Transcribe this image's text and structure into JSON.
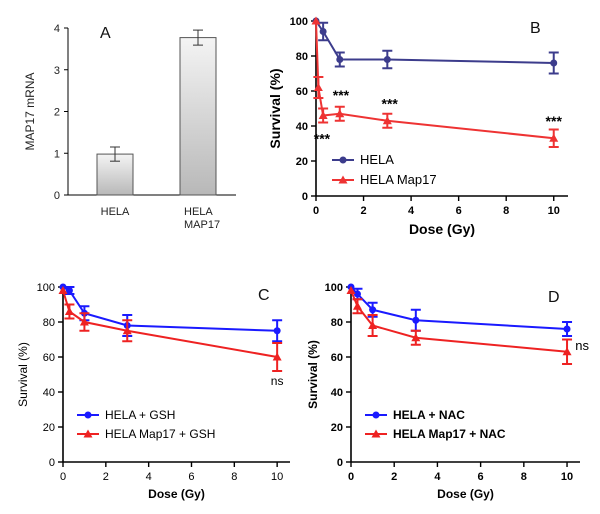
{
  "figure": {
    "description_visible": false
  },
  "chart_data": [
    {
      "panel": "A",
      "type": "bar",
      "panel_label": "A",
      "title": "",
      "xlabel": "",
      "ylabel": "MAP17 mRNA",
      "ylim": [
        0,
        4
      ],
      "yticks": [
        "0",
        "1",
        "2",
        "3",
        "4"
      ],
      "categories": [
        "HELA",
        "HELA\nMAP17"
      ],
      "category_lines": [
        [
          "HELA"
        ],
        [
          "HELA",
          "MAP17"
        ]
      ],
      "values": [
        0.98,
        3.77
      ],
      "errors": [
        0.17,
        0.18
      ],
      "bar_color_top": "#f4f4f4",
      "bar_color_bottom": "#b8b8b8"
    },
    {
      "panel": "B",
      "type": "line",
      "panel_label": "B",
      "xlabel": "Dose (Gy)",
      "ylabel": "Survival (%)",
      "xlim": [
        0,
        10.6
      ],
      "ylim": [
        0,
        100
      ],
      "xticks": [
        "0",
        "2",
        "4",
        "6",
        "8",
        "10"
      ],
      "yticks": [
        "0",
        "20",
        "40",
        "60",
        "80",
        "100"
      ],
      "legend_position": "bottom-left",
      "series": [
        {
          "name": "HELA",
          "color": "#3c3c8c",
          "marker": "circle",
          "x": [
            0,
            0.3,
            1,
            3,
            10
          ],
          "y": [
            100,
            94,
            78,
            78,
            76
          ],
          "err": [
            0,
            5,
            4,
            5,
            6
          ]
        },
        {
          "name": "HELA Map17",
          "color": "#ee3333",
          "marker": "triangle",
          "x": [
            0,
            0.1,
            0.3,
            1,
            3,
            10
          ],
          "y": [
            100,
            62,
            46,
            47,
            43,
            33
          ],
          "err": [
            0,
            6,
            4,
            4,
            4,
            5
          ]
        }
      ],
      "annotations": [
        {
          "text": "***",
          "x": 0.25,
          "y": 30
        },
        {
          "text": "***",
          "x": 1.05,
          "y": 55
        },
        {
          "text": "***",
          "x": 3.1,
          "y": 50
        },
        {
          "text": "***",
          "x": 10,
          "y": 40
        }
      ]
    },
    {
      "panel": "C",
      "type": "line",
      "panel_label": "C",
      "xlabel": "Dose (Gy)",
      "ylabel": "Survival (%)",
      "xlim": [
        0,
        10.6
      ],
      "ylim": [
        0,
        100
      ],
      "xticks": [
        "0",
        "2",
        "4",
        "6",
        "8",
        "10"
      ],
      "yticks": [
        "0",
        "20",
        "40",
        "60",
        "80",
        "100"
      ],
      "legend_position": "bottom-left",
      "series": [
        {
          "name": "HELA + GSH",
          "color": "#1a1aff",
          "marker": "circle",
          "x": [
            0,
            0.3,
            1,
            3,
            10
          ],
          "y": [
            100,
            98,
            85,
            78,
            75
          ],
          "err": [
            0,
            2,
            4,
            6,
            6
          ]
        },
        {
          "name": "HELA Map17 + GSH",
          "color": "#ee2222",
          "marker": "triangle",
          "x": [
            0,
            0.3,
            1,
            3,
            10
          ],
          "y": [
            98,
            86,
            80,
            75,
            60
          ],
          "err": [
            0,
            4,
            5,
            6,
            8
          ]
        }
      ],
      "annotations": [
        {
          "text": "ns",
          "x": 10,
          "y": 44
        }
      ]
    },
    {
      "panel": "D",
      "type": "line",
      "panel_label": "D",
      "xlabel": "Dose (Gy)",
      "ylabel": "Survival (%)",
      "xlim": [
        0,
        10.6
      ],
      "ylim": [
        0,
        100
      ],
      "xticks": [
        "0",
        "2",
        "4",
        "6",
        "8",
        "10"
      ],
      "yticks": [
        "0",
        "20",
        "40",
        "60",
        "80",
        "100"
      ],
      "legend_position": "bottom-left",
      "series": [
        {
          "name": "HELA + NAC",
          "color": "#1a1aff",
          "marker": "circle",
          "x": [
            0,
            0.3,
            1,
            3,
            10
          ],
          "y": [
            100,
            96,
            87,
            81,
            76
          ],
          "err": [
            0,
            3,
            4,
            6,
            4
          ]
        },
        {
          "name": "HELA Map17 + NAC",
          "color": "#ee2222",
          "marker": "triangle",
          "x": [
            0,
            0.3,
            1,
            3,
            10
          ],
          "y": [
            98,
            89,
            78,
            71,
            63
          ],
          "err": [
            0,
            4,
            6,
            4,
            7
          ]
        }
      ],
      "annotations": [
        {
          "text": "ns",
          "x": 10.7,
          "y": 64
        }
      ]
    }
  ]
}
